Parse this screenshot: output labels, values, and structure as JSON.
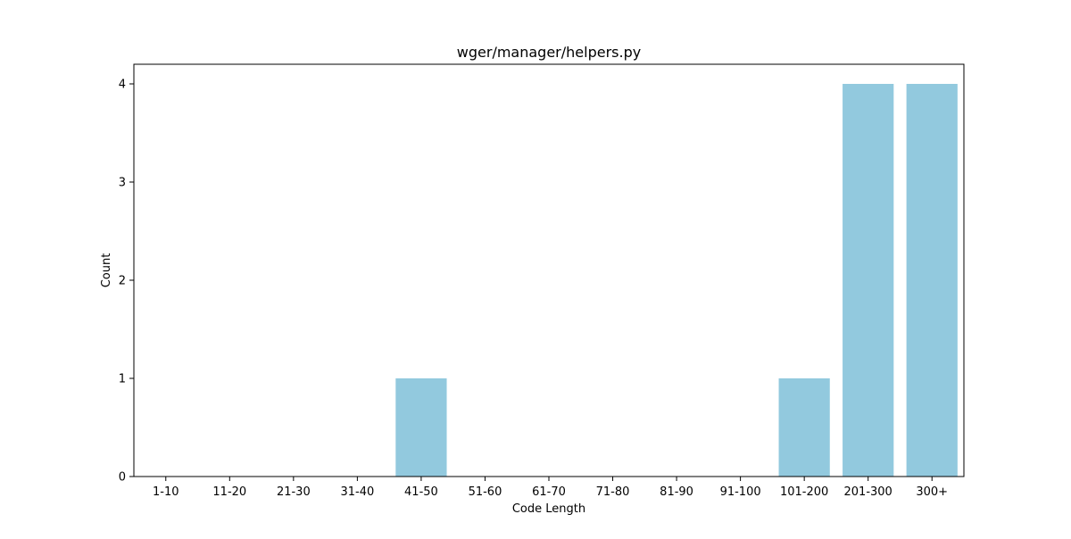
{
  "chart_data": {
    "type": "bar",
    "title": "wger/manager/helpers.py",
    "xlabel": "Code Length",
    "ylabel": "Count",
    "categories": [
      "1-10",
      "11-20",
      "21-30",
      "31-40",
      "41-50",
      "51-60",
      "61-70",
      "71-80",
      "81-90",
      "91-100",
      "101-200",
      "201-300",
      "300+"
    ],
    "values": [
      0,
      0,
      0,
      0,
      1,
      0,
      0,
      0,
      0,
      0,
      1,
      4,
      4
    ],
    "ylim": [
      0,
      4.2
    ],
    "yticks": [
      0,
      1,
      2,
      3,
      4
    ],
    "grid": false,
    "legend": "none",
    "bar_color": "#92c9de"
  }
}
